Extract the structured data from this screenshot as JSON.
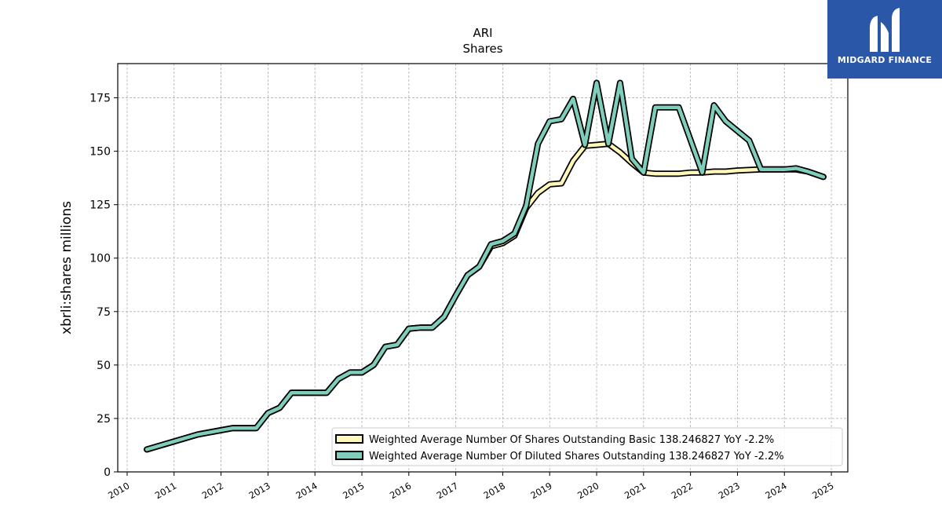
{
  "brand": {
    "name": "MIDGARD FINANCE",
    "bg_color": "#2b57a8"
  },
  "chart_data": {
    "type": "line",
    "title": "ARI",
    "subtitle": "Shares",
    "xlabel": "",
    "ylabel": "xbrli:shares millions",
    "xlim": [
      2009.8,
      2025.35
    ],
    "ylim": [
      0,
      191
    ],
    "yticks": [
      0,
      25,
      50,
      75,
      100,
      125,
      150,
      175
    ],
    "xticks": [
      "2010",
      "2011",
      "2012",
      "2013",
      "2014",
      "2015",
      "2016",
      "2017",
      "2018",
      "2019",
      "2020",
      "2021",
      "2022",
      "2023",
      "2024",
      "2025"
    ],
    "grid": true,
    "legend_position": "lower-right",
    "series": [
      {
        "name": "Weighted Average Number Of Shares Outstanding Basic  138.246827 YoY -2.2%",
        "color": "#fff8b8",
        "points": [
          [
            2010.42,
            10.5
          ],
          [
            2011.5,
            17.5
          ],
          [
            2012.25,
            20.5
          ],
          [
            2012.75,
            20.5
          ],
          [
            2013.0,
            27.5
          ],
          [
            2013.25,
            30.0
          ],
          [
            2013.5,
            37.0
          ],
          [
            2014.25,
            37.0
          ],
          [
            2014.5,
            43.5
          ],
          [
            2014.75,
            46.5
          ],
          [
            2015.0,
            46.5
          ],
          [
            2015.25,
            50.0
          ],
          [
            2015.5,
            58.5
          ],
          [
            2015.75,
            59.5
          ],
          [
            2016.0,
            67.0
          ],
          [
            2016.25,
            67.5
          ],
          [
            2016.5,
            67.5
          ],
          [
            2016.75,
            72.5
          ],
          [
            2017.0,
            82.5
          ],
          [
            2017.25,
            92.0
          ],
          [
            2017.5,
            96.0
          ],
          [
            2017.75,
            105.5
          ],
          [
            2018.0,
            107.0
          ],
          [
            2018.25,
            110.5
          ],
          [
            2018.5,
            123.5
          ],
          [
            2018.75,
            130.5
          ],
          [
            2019.0,
            134.5
          ],
          [
            2019.25,
            135.0
          ],
          [
            2019.5,
            145.5
          ],
          [
            2019.75,
            152.5
          ],
          [
            2020.0,
            153.0
          ],
          [
            2020.25,
            153.5
          ],
          [
            2020.5,
            149.5
          ],
          [
            2020.75,
            144.5
          ],
          [
            2021.0,
            140.0
          ],
          [
            2021.25,
            139.5
          ],
          [
            2021.5,
            139.5
          ],
          [
            2021.75,
            139.5
          ],
          [
            2022.0,
            140.0
          ],
          [
            2022.25,
            140.0
          ],
          [
            2022.5,
            140.5
          ],
          [
            2022.75,
            140.5
          ],
          [
            2023.0,
            141.0
          ],
          [
            2023.5,
            141.5
          ],
          [
            2024.0,
            141.5
          ],
          [
            2024.25,
            141.5
          ],
          [
            2024.5,
            140.5
          ],
          [
            2024.83,
            138.0
          ]
        ]
      },
      {
        "name": "Weighted Average Number Of Diluted Shares Outstanding  138.246827 YoY -2.2%",
        "color": "#7fcdbb",
        "points": [
          [
            2010.42,
            10.5
          ],
          [
            2011.5,
            17.5
          ],
          [
            2012.25,
            20.5
          ],
          [
            2012.75,
            20.5
          ],
          [
            2013.0,
            27.5
          ],
          [
            2013.25,
            30.0
          ],
          [
            2013.5,
            37.0
          ],
          [
            2014.25,
            37.0
          ],
          [
            2014.5,
            43.5
          ],
          [
            2014.75,
            46.5
          ],
          [
            2015.0,
            46.5
          ],
          [
            2015.25,
            50.0
          ],
          [
            2015.5,
            58.5
          ],
          [
            2015.75,
            59.5
          ],
          [
            2016.0,
            67.0
          ],
          [
            2016.25,
            67.5
          ],
          [
            2016.5,
            67.5
          ],
          [
            2016.75,
            72.5
          ],
          [
            2017.0,
            82.5
          ],
          [
            2017.25,
            92.0
          ],
          [
            2017.5,
            96.0
          ],
          [
            2017.75,
            106.5
          ],
          [
            2018.0,
            108.0
          ],
          [
            2018.25,
            111.5
          ],
          [
            2018.5,
            124.5
          ],
          [
            2018.75,
            153.5
          ],
          [
            2019.0,
            164.0
          ],
          [
            2019.25,
            165.0
          ],
          [
            2019.5,
            174.5
          ],
          [
            2019.75,
            153.0
          ],
          [
            2020.0,
            182.0
          ],
          [
            2020.25,
            153.5
          ],
          [
            2020.5,
            182.0
          ],
          [
            2020.75,
            146.5
          ],
          [
            2021.0,
            140.0
          ],
          [
            2021.25,
            170.5
          ],
          [
            2021.5,
            170.5
          ],
          [
            2021.75,
            170.5
          ],
          [
            2022.25,
            140.0
          ],
          [
            2022.5,
            171.5
          ],
          [
            2022.75,
            164.0
          ],
          [
            2023.25,
            155.0
          ],
          [
            2023.5,
            141.5
          ],
          [
            2023.75,
            141.5
          ],
          [
            2024.0,
            141.5
          ],
          [
            2024.25,
            142.0
          ],
          [
            2024.5,
            140.5
          ],
          [
            2024.83,
            138.0
          ]
        ]
      }
    ]
  }
}
